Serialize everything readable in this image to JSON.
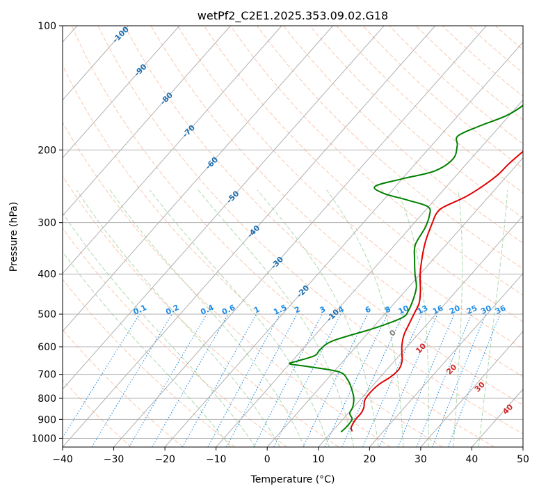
{
  "chart_data": {
    "type": "line",
    "title": "wetPf2_C2E1.2025.353.09.02.G18",
    "xlabel": "Temperature (°C)",
    "ylabel": "Pressure (hPa)",
    "xlim": [
      -40,
      50
    ],
    "ylim": [
      1050,
      100
    ],
    "y_scale": "log",
    "x_ticks": [
      -40,
      -30,
      -20,
      -10,
      0,
      10,
      20,
      30,
      40,
      50
    ],
    "x_tick_labels": [
      "−40",
      "−30",
      "−20",
      "−10",
      "0",
      "10",
      "20",
      "30",
      "40",
      "50"
    ],
    "y_ticks": [
      100,
      200,
      300,
      400,
      500,
      600,
      700,
      800,
      900,
      1000
    ],
    "y_tick_labels": [
      "100",
      "200",
      "300",
      "400",
      "500",
      "600",
      "700",
      "800",
      "900",
      "1000"
    ],
    "grid": true,
    "colors": {
      "temperature": "#e00000",
      "dewpoint": "#008000",
      "isotherm": "#b0b0b0",
      "dry_adiabat": "#f5a27a",
      "moist_adiabat": "#8cc98c",
      "mixing_ratio": "#1f8ce6",
      "isotherm_label": "#1f6fb0",
      "theta_label": "#d62728"
    },
    "series": [
      {
        "key": "temperature",
        "p": [
          962,
          940,
          900,
          870,
          840,
          810,
          780,
          740,
          710,
          680,
          650,
          620,
          590,
          560,
          530,
          500,
          470,
          440,
          400,
          360,
          330,
          300,
          285,
          275,
          260,
          245,
          230,
          215,
          200,
          185,
          170,
          160,
          150,
          140,
          130,
          120,
          110,
          100
        ],
        "t": [
          13.9,
          13.0,
          12.5,
          12.5,
          12.0,
          11.0,
          10.7,
          11.0,
          12.0,
          12.3,
          11.5,
          10.0,
          8.5,
          7.3,
          6.5,
          5.7,
          4.8,
          3.0,
          0.0,
          -2.8,
          -4.8,
          -6.5,
          -7.3,
          -7.0,
          -4.5,
          -3.0,
          -2.0,
          -1.7,
          -1.0,
          0.0,
          1.0,
          2.2,
          4.5,
          6.0,
          7.5,
          9.5,
          12.0,
          14.0
        ]
      },
      {
        "key": "dewpoint",
        "p": [
          965,
          940,
          900,
          870,
          840,
          800,
          760,
          720,
          690,
          670,
          660,
          650,
          630,
          610,
          580,
          540,
          510,
          490,
          460,
          430,
          400,
          370,
          340,
          310,
          290,
          275,
          265,
          255,
          245,
          235,
          225,
          210,
          195,
          185,
          175,
          165,
          155,
          145,
          135,
          125,
          115,
          105,
          100
        ],
        "t": [
          11.8,
          12.0,
          11.8,
          10.3,
          9.8,
          8.5,
          6.5,
          4.0,
          1.0,
          -6.0,
          -10.0,
          -9.0,
          -6.5,
          -6.5,
          -5.5,
          0.5,
          4.0,
          4.0,
          3.0,
          1.5,
          -1.0,
          -3.5,
          -6.0,
          -7.0,
          -8.2,
          -10.0,
          -15.0,
          -21.0,
          -24.0,
          -20.0,
          -15.0,
          -13.5,
          -15.0,
          -16.5,
          -14.0,
          -10.5,
          -9.0,
          -9.0,
          -9.0,
          -7.0,
          -5.0,
          -3.0,
          -2.0
        ]
      }
    ],
    "isotherm_labels": [
      "-100",
      "-90",
      "-80",
      "-70",
      "-60",
      "-50",
      "-40",
      "-30",
      "-20",
      "-10"
    ],
    "mixing_ratio_labels": [
      "0.1",
      "0.2",
      "0.4",
      "0.6",
      "1",
      "1.5",
      "2",
      "3",
      "4",
      "6",
      "8",
      "10",
      "13",
      "16",
      "20",
      "25",
      "30",
      "36"
    ],
    "theta_labels": [
      "0",
      "10",
      "20",
      "30",
      "40"
    ]
  }
}
